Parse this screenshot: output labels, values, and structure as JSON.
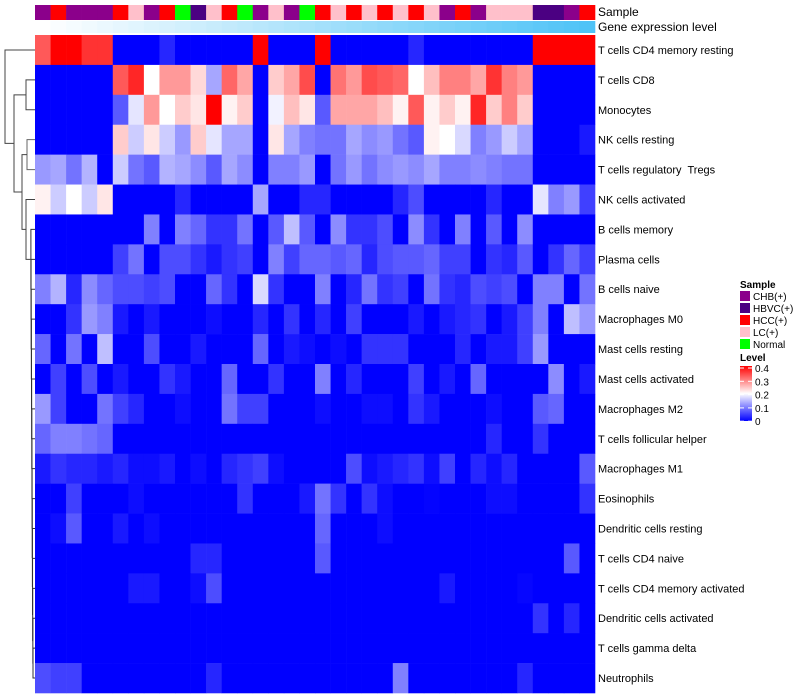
{
  "chart_data": {
    "type": "heatmap",
    "annotation_labels": {
      "sample": "Sample",
      "gene_expression": "Gene expression level"
    },
    "sample_groups": [
      "CHB(+)",
      "HBVC(+)",
      "HCC(+)",
      "LC(+)",
      "Normal"
    ],
    "sample_colors": {
      "CHB(+)": "#8B008B",
      "HBVC(+)": "#4B0082",
      "HCC(+)": "#FF0000",
      "LC(+)": "#FFC0CB",
      "Normal": "#00FF00"
    },
    "columns_sample": [
      "CHB(+)",
      "HCC(+)",
      "CHB(+)",
      "CHB(+)",
      "CHB(+)",
      "HCC(+)",
      "LC(+)",
      "CHB(+)",
      "HCC(+)",
      "Normal",
      "HBVC(+)",
      "LC(+)",
      "HCC(+)",
      "Normal",
      "CHB(+)",
      "LC(+)",
      "CHB(+)",
      "Normal",
      "HCC(+)",
      "LC(+)",
      "HCC(+)",
      "LC(+)",
      "HCC(+)",
      "LC(+)",
      "HCC(+)",
      "LC(+)",
      "CHB(+)",
      "HCC(+)",
      "CHB(+)",
      "LC(+)",
      "LC(+)",
      "LC(+)",
      "HBVC(+)",
      "HBVC(+)",
      "CHB(+)",
      "HCC(+)"
    ],
    "gene_expression_gradient": [
      "#FFFFFF",
      "#4FC3F7"
    ],
    "rows": [
      "T cells CD4 memory resting",
      "T cells CD8",
      "Monocytes",
      "NK cells resting",
      "T cells regulatory  Tregs",
      "NK cells activated",
      "B cells memory",
      "Plasma cells",
      "B cells naive",
      "Macrophages M0",
      "Mast cells resting",
      "Mast cells activated",
      "Macrophages M2",
      "T cells follicular helper",
      "Macrophages M1",
      "Eosinophils",
      "Dendritic cells resting",
      "T cells CD4 naive",
      "T cells CD4 memory activated",
      "Dendritic cells activated",
      "T cells gamma delta",
      "Neutrophils"
    ],
    "values": [
      [
        0.33,
        0.4,
        0.4,
        0.36,
        0.36,
        0,
        0,
        0,
        0.03,
        0,
        0,
        0,
        0,
        0,
        0.4,
        0,
        0,
        0,
        0.4,
        0,
        0,
        0,
        0,
        0,
        0.03,
        0,
        0,
        0,
        0,
        0,
        0,
        0,
        0.4,
        0.4,
        0.4,
        0.4
      ],
      [
        0,
        0,
        0,
        0,
        0,
        0.33,
        0.37,
        0.2,
        0.28,
        0.28,
        0.23,
        0.13,
        0.32,
        0.27,
        0,
        0.24,
        0.27,
        0.34,
        0,
        0.31,
        0.28,
        0.34,
        0.33,
        0.32,
        0.2,
        0.25,
        0.3,
        0.3,
        0.27,
        0.36,
        0.3,
        0.28,
        0,
        0,
        0,
        0
      ],
      [
        0,
        0,
        0,
        0,
        0,
        0.07,
        0.18,
        0.28,
        0.2,
        0.24,
        0.22,
        0.4,
        0.21,
        0.24,
        0,
        0.19,
        0.25,
        0.22,
        0.07,
        0.27,
        0.27,
        0.27,
        0.25,
        0.21,
        0.33,
        0.21,
        0.24,
        0.21,
        0.37,
        0.24,
        0.3,
        0.24,
        0,
        0,
        0,
        0
      ],
      [
        0,
        0,
        0,
        0,
        0,
        0.24,
        0.16,
        0.22,
        0.16,
        0.12,
        0.24,
        0.18,
        0.13,
        0.13,
        0,
        0.22,
        0.13,
        0.1,
        0.09,
        0.09,
        0.13,
        0.11,
        0.12,
        0.09,
        0.07,
        0.21,
        0.2,
        0.17,
        0.1,
        0.12,
        0.16,
        0.13,
        0,
        0,
        0,
        0.02
      ],
      [
        0.12,
        0.13,
        0.09,
        0.14,
        0,
        0.16,
        0.09,
        0.07,
        0.14,
        0.13,
        0.11,
        0.07,
        0.13,
        0.11,
        0,
        0.1,
        0.1,
        0.12,
        0,
        0.09,
        0.12,
        0.09,
        0.11,
        0.12,
        0.11,
        0.13,
        0.1,
        0.1,
        0.11,
        0.1,
        0.09,
        0.09,
        0,
        0,
        0,
        0
      ],
      [
        0.21,
        0.16,
        0.2,
        0.16,
        0.22,
        0,
        0,
        0,
        0,
        0.03,
        0,
        0,
        0,
        0,
        0.13,
        0,
        0,
        0.03,
        0.03,
        0,
        0,
        0,
        0,
        0.03,
        0.06,
        0,
        0,
        0,
        0,
        0.03,
        0,
        0,
        0.18,
        0.1,
        0.12,
        0.05
      ],
      [
        0,
        0,
        0,
        0,
        0,
        0,
        0,
        0.1,
        0,
        0.1,
        0.08,
        0.04,
        0.04,
        0.09,
        0,
        0.07,
        0.15,
        0.07,
        0,
        0.11,
        0.04,
        0.04,
        0.06,
        0,
        0.11,
        0.04,
        0,
        0.1,
        0,
        0.07,
        0,
        0.11,
        0,
        0,
        0,
        0
      ],
      [
        0,
        0,
        0,
        0,
        0,
        0.05,
        0.09,
        0,
        0.06,
        0.06,
        0.04,
        0.02,
        0.04,
        0.05,
        0,
        0.1,
        0.05,
        0.08,
        0.08,
        0.07,
        0.08,
        0.03,
        0.06,
        0.07,
        0.07,
        0.08,
        0.05,
        0.05,
        0,
        0.04,
        0.03,
        0.07,
        0,
        0.04,
        0.08,
        0.05
      ],
      [
        0.1,
        0.14,
        0.03,
        0.11,
        0.08,
        0.06,
        0.06,
        0.05,
        0.06,
        0,
        0,
        0.08,
        0.04,
        0,
        0.17,
        0.04,
        0,
        0,
        0.1,
        0,
        0.03,
        0.09,
        0.04,
        0.05,
        0,
        0.09,
        0.04,
        0.03,
        0.06,
        0.05,
        0.06,
        0,
        0.1,
        0.1,
        0,
        0.09
      ],
      [
        0,
        0,
        0.04,
        0.12,
        0.1,
        0.02,
        0,
        0.02,
        0,
        0,
        0,
        0.01,
        0,
        0,
        0.03,
        0,
        0.04,
        0,
        0.03,
        0,
        0.05,
        0,
        0,
        0,
        0.02,
        0,
        0.02,
        0.03,
        0.04,
        0,
        0.02,
        0.05,
        0.1,
        0,
        0.15,
        0.12
      ],
      [
        0.08,
        0,
        0.09,
        0,
        0.15,
        0,
        0,
        0.06,
        0,
        0,
        0.02,
        0,
        0,
        0,
        0.08,
        0,
        0.02,
        0.01,
        0,
        0.01,
        0,
        0.04,
        0.04,
        0.04,
        0,
        0,
        0,
        0.03,
        0,
        0.02,
        0.02,
        0.05,
        0.12,
        0,
        0,
        0
      ],
      [
        0,
        0.05,
        0,
        0.06,
        0,
        0.02,
        0,
        0,
        0.04,
        0.02,
        0,
        0,
        0.08,
        0,
        0,
        0.04,
        0,
        0,
        0.1,
        0,
        0.03,
        0,
        0,
        0,
        0.05,
        0,
        0.02,
        0,
        0.08,
        0,
        0,
        0,
        0,
        0.11,
        0,
        0.02
      ],
      [
        0.12,
        0.05,
        0,
        0,
        0.09,
        0.05,
        0.03,
        0,
        0,
        0.01,
        0,
        0,
        0.09,
        0.05,
        0.05,
        0,
        0,
        0,
        0.01,
        0,
        0,
        0.01,
        0.01,
        0,
        0.04,
        0.02,
        0,
        0,
        0,
        0.01,
        0,
        0,
        0.07,
        0.08,
        0,
        0
      ],
      [
        0.08,
        0.1,
        0.1,
        0.09,
        0.08,
        0,
        0,
        0,
        0,
        0,
        0,
        0,
        0,
        0,
        0,
        0,
        0,
        0,
        0,
        0,
        0,
        0,
        0,
        0,
        0,
        0,
        0,
        0,
        0,
        0.03,
        0,
        0,
        0.04,
        0,
        0,
        0
      ],
      [
        0.02,
        0.04,
        0.03,
        0.03,
        0.02,
        0.03,
        0.01,
        0.01,
        0.02,
        0,
        0.01,
        0,
        0.03,
        0.04,
        0.05,
        0.01,
        0,
        0,
        0,
        0,
        0.06,
        0.01,
        0.02,
        0.03,
        0.04,
        0.01,
        0.05,
        0,
        0.03,
        0.01,
        0.03,
        0,
        0,
        0,
        0,
        0.07
      ],
      [
        0,
        0,
        0.05,
        0,
        0,
        0,
        0.01,
        0,
        0,
        0,
        0,
        0,
        0,
        0.04,
        0,
        0,
        0,
        0.02,
        0.09,
        0.04,
        0,
        0.04,
        0.01,
        0,
        0,
        0.003,
        0,
        0,
        0,
        0.01,
        0.01,
        0,
        0,
        0,
        0,
        0.04
      ],
      [
        0,
        0.01,
        0.07,
        0,
        0,
        0.02,
        0,
        0.01,
        0,
        0,
        0,
        0,
        0,
        0,
        0,
        0,
        0,
        0,
        0.08,
        0,
        0,
        0,
        0.01,
        0,
        0,
        0,
        0,
        0,
        0,
        0,
        0,
        0,
        0,
        0,
        0,
        0
      ],
      [
        0,
        0,
        0,
        0,
        0,
        0,
        0,
        0,
        0,
        0,
        0.03,
        0.03,
        0,
        0,
        0,
        0,
        0,
        0,
        0.07,
        0,
        0,
        0,
        0,
        0,
        0,
        0,
        0,
        0,
        0,
        0,
        0,
        0,
        0,
        0,
        0.07,
        0
      ],
      [
        0,
        0,
        0,
        0,
        0,
        0,
        0.02,
        0.02,
        0,
        0,
        0.01,
        0.06,
        0,
        0,
        0,
        0,
        0,
        0,
        0,
        0,
        0,
        0,
        0,
        0,
        0,
        0,
        0.02,
        0,
        0,
        0,
        0,
        0.005,
        0,
        0,
        0,
        0
      ],
      [
        0,
        0,
        0,
        0,
        0,
        0,
        0,
        0,
        0,
        0,
        0,
        0,
        0,
        0,
        0,
        0,
        0,
        0,
        0,
        0,
        0,
        0,
        0,
        0,
        0,
        0,
        0,
        0,
        0,
        0,
        0,
        0,
        0.04,
        0,
        0.03,
        0
      ],
      [
        0,
        0,
        0,
        0,
        0,
        0,
        0,
        0,
        0,
        0,
        0,
        0,
        0,
        0,
        0,
        0,
        0,
        0,
        0,
        0,
        0,
        0,
        0,
        0,
        0,
        0,
        0,
        0,
        0,
        0,
        0,
        0,
        0,
        0,
        0,
        0
      ],
      [
        0.06,
        0.05,
        0.05,
        0,
        0,
        0,
        0,
        0,
        0,
        0,
        0,
        0.03,
        0,
        0,
        0,
        0,
        0,
        0,
        0,
        0,
        0,
        0,
        0,
        0.1,
        0,
        0,
        0,
        0,
        0,
        0,
        0,
        0.03,
        0,
        0,
        0,
        0
      ]
    ],
    "color_scale": {
      "min": 0,
      "mid": 0.2,
      "max": 0.4,
      "low_color": "#0000FF",
      "mid_color": "#FFFFFF",
      "high_color": "#FF0000"
    },
    "legend": {
      "sample_title": "Sample",
      "level_title": "Level",
      "level_ticks": [
        "0.4",
        "0.3",
        "0.2",
        "0.1",
        "0"
      ],
      "placement": "right"
    },
    "row_dendrogram": true
  }
}
